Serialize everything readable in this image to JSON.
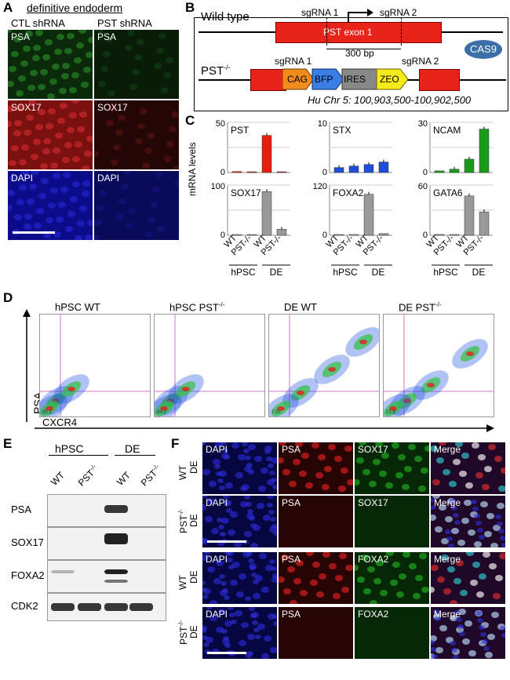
{
  "panelA": {
    "letter": "A",
    "header": "definitive endoderm",
    "col1": "CTL shRNA",
    "col2": "PST shRNA",
    "rows": [
      {
        "left": "PSA",
        "right": "PSA",
        "color": "#2e9a2e",
        "bg": "#0b2a0b",
        "bgR": "#081c08"
      },
      {
        "left": "SOX17",
        "right": "SOX17",
        "color": "#e03030",
        "bg": "#7a1010",
        "bgR": "#250606"
      },
      {
        "left": "DAPI",
        "right": "DAPI",
        "color": "#2a2ae0",
        "bg": "#0c0c8a",
        "bgR": "#0a0a5a"
      }
    ]
  },
  "panelB": {
    "letter": "B",
    "wt_label": "Wild type",
    "sg1": "sgRNA 1",
    "sg2": "sgRNA 2",
    "exon": "PST exon 1",
    "bp": "300 bp",
    "cas9": "CAS9",
    "ko_label": "PST",
    "ko_sup": "-/-",
    "cassette": [
      "CAG",
      "BFP",
      "IRES",
      "ZEO"
    ],
    "coords": "Hu Chr 5: 100,903,500-100,902,500"
  },
  "panelC": {
    "letter": "C",
    "ylabel": "mRNA levels",
    "group_hpsc": "hPSC",
    "group_de": "DE",
    "xticks": [
      "WT",
      "PST-/-",
      "WT",
      "PST-/-"
    ]
  },
  "chart_data": [
    {
      "type": "bar",
      "title": "PST",
      "categories": [
        "hPSC WT",
        "hPSC PST-/-",
        "DE WT",
        "DE PST-/-"
      ],
      "values": [
        1,
        0.5,
        37,
        0.5
      ],
      "ylim": [
        0,
        50
      ],
      "yticks": [
        "0",
        "50"
      ],
      "color": "#e51e10"
    },
    {
      "type": "bar",
      "title": "STX",
      "categories": [
        "hPSC WT",
        "hPSC PST-/-",
        "DE WT",
        "DE PST-/-"
      ],
      "values": [
        1,
        1.3,
        1.6,
        2.1
      ],
      "ylim": [
        0,
        10
      ],
      "yticks": [
        "0",
        "10"
      ],
      "color": "#1f4fd6"
    },
    {
      "type": "bar",
      "title": "NCAM",
      "categories": [
        "hPSC WT",
        "hPSC PST-/-",
        "DE WT",
        "DE PST-/-"
      ],
      "values": [
        1,
        2,
        8,
        26
      ],
      "ylim": [
        0,
        30
      ],
      "yticks": [
        "0",
        "30"
      ],
      "color": "#1a9a1a"
    },
    {
      "type": "bar",
      "title": "SOX17",
      "categories": [
        "hPSC WT",
        "hPSC PST-/-",
        "DE WT",
        "DE PST-/-"
      ],
      "values": [
        0.5,
        0.5,
        87,
        12
      ],
      "ylim": [
        0,
        100
      ],
      "yticks": [
        "0",
        "100"
      ],
      "color": "#999999"
    },
    {
      "type": "bar",
      "title": "FOXA2",
      "categories": [
        "hPSC WT",
        "hPSC PST-/-",
        "DE WT",
        "DE PST-/-"
      ],
      "values": [
        0.5,
        0.5,
        98,
        4
      ],
      "ylim": [
        0,
        120
      ],
      "yticks": [
        "0",
        "120"
      ],
      "color": "#999999"
    },
    {
      "type": "bar",
      "title": "GATA6",
      "categories": [
        "hPSC WT",
        "hPSC PST-/-",
        "DE WT",
        "DE PST-/-"
      ],
      "values": [
        1,
        0.5,
        47,
        28
      ],
      "ylim": [
        0,
        60
      ],
      "yticks": [
        "0",
        "60"
      ],
      "color": "#999999"
    }
  ],
  "panelD": {
    "letter": "D",
    "titles": [
      "hPSC WT",
      "hPSC PST-/-",
      "DE WT",
      "DE PST-/-"
    ],
    "ylabel": "PSA",
    "xlabel": "CXCR4",
    "quadrant_values": [
      "95.1",
      "94.2",
      "7.91",
      "52.3"
    ]
  },
  "panelE": {
    "letter": "E",
    "group_hpsc": "hPSC",
    "group_de": "DE",
    "lanes": [
      "WT",
      "PST-/-",
      "WT",
      "PST-/-"
    ],
    "rows": [
      "PSA",
      "SOX17",
      "FOXA2",
      "CDK2"
    ]
  },
  "panelF": {
    "letter": "F",
    "rows": [
      {
        "side": "WT",
        "side2": "DE",
        "cells": [
          "DAPI",
          "PSA",
          "SOX17",
          "Merge"
        ]
      },
      {
        "side": "PST-/-",
        "side2": "DE",
        "cells": [
          "DAPI",
          "PSA",
          "SOX17",
          "Merge"
        ]
      },
      {
        "side": "WT",
        "side2": "DE",
        "cells": [
          "DAPI",
          "PSA",
          "FOXA2",
          "Merge"
        ]
      },
      {
        "side": "PST-/-",
        "side2": "DE",
        "cells": [
          "DAPI",
          "PSA",
          "FOXA2",
          "Merge"
        ]
      }
    ]
  }
}
